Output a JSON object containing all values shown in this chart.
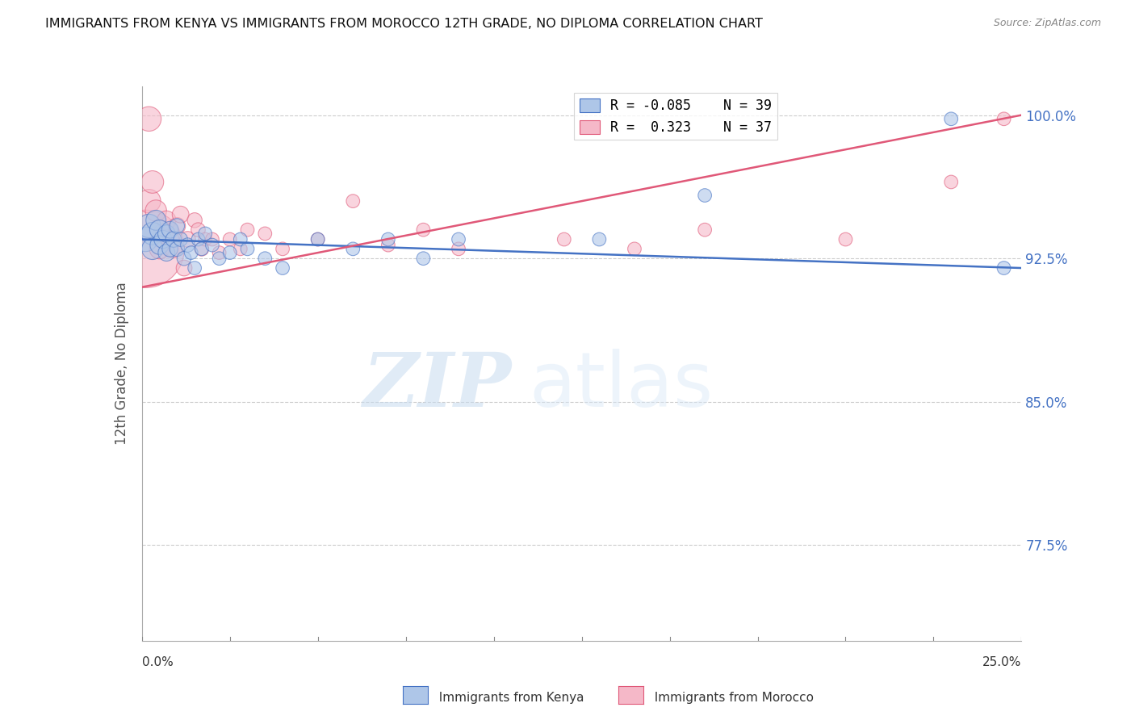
{
  "title": "IMMIGRANTS FROM KENYA VS IMMIGRANTS FROM MOROCCO 12TH GRADE, NO DIPLOMA CORRELATION CHART",
  "source": "Source: ZipAtlas.com",
  "ylabel": "12th Grade, No Diploma",
  "xlim": [
    0.0,
    0.25
  ],
  "ylim": [
    0.725,
    1.015
  ],
  "yticks": [
    0.775,
    0.85,
    0.925,
    1.0
  ],
  "ytick_labels": [
    "77.5%",
    "85.0%",
    "92.5%",
    "100.0%"
  ],
  "legend_r1": "R = -0.085",
  "legend_n1": "N = 39",
  "legend_r2": "R =  0.323",
  "legend_n2": "N = 37",
  "legend_label1": "Immigrants from Kenya",
  "legend_label2": "Immigrants from Morocco",
  "color_kenya": "#aec6e8",
  "color_morocco": "#f5b8c8",
  "color_line_kenya": "#4472c4",
  "color_line_morocco": "#e05878",
  "watermark_zip": "ZIP",
  "watermark_atlas": "atlas",
  "kenya_x": [
    0.001,
    0.002,
    0.003,
    0.003,
    0.004,
    0.005,
    0.005,
    0.006,
    0.007,
    0.007,
    0.008,
    0.008,
    0.009,
    0.01,
    0.01,
    0.011,
    0.012,
    0.013,
    0.014,
    0.015,
    0.016,
    0.017,
    0.018,
    0.02,
    0.022,
    0.025,
    0.028,
    0.03,
    0.035,
    0.04,
    0.05,
    0.06,
    0.07,
    0.08,
    0.09,
    0.13,
    0.16,
    0.23,
    0.245
  ],
  "kenya_y": [
    0.935,
    0.942,
    0.938,
    0.93,
    0.945,
    0.94,
    0.932,
    0.935,
    0.938,
    0.928,
    0.94,
    0.93,
    0.935,
    0.942,
    0.93,
    0.935,
    0.925,
    0.932,
    0.928,
    0.92,
    0.935,
    0.93,
    0.938,
    0.932,
    0.925,
    0.928,
    0.935,
    0.93,
    0.925,
    0.92,
    0.935,
    0.93,
    0.935,
    0.925,
    0.935,
    0.935,
    0.958,
    0.998,
    0.92
  ],
  "kenya_sizes": [
    60,
    55,
    50,
    45,
    40,
    38,
    35,
    32,
    30,
    28,
    28,
    25,
    25,
    22,
    22,
    20,
    20,
    20,
    18,
    18,
    18,
    18,
    18,
    18,
    18,
    18,
    18,
    18,
    18,
    18,
    18,
    18,
    18,
    18,
    18,
    18,
    18,
    18,
    18
  ],
  "morocco_x": [
    0.001,
    0.002,
    0.002,
    0.003,
    0.004,
    0.005,
    0.005,
    0.006,
    0.007,
    0.008,
    0.009,
    0.01,
    0.011,
    0.012,
    0.013,
    0.015,
    0.016,
    0.017,
    0.018,
    0.02,
    0.022,
    0.025,
    0.028,
    0.03,
    0.035,
    0.04,
    0.05,
    0.06,
    0.07,
    0.08,
    0.09,
    0.12,
    0.14,
    0.16,
    0.2,
    0.23,
    0.245
  ],
  "morocco_y": [
    0.93,
    0.998,
    0.955,
    0.965,
    0.95,
    0.94,
    0.93,
    0.938,
    0.945,
    0.935,
    0.93,
    0.942,
    0.948,
    0.92,
    0.935,
    0.945,
    0.94,
    0.93,
    0.935,
    0.935,
    0.928,
    0.935,
    0.93,
    0.94,
    0.938,
    0.93,
    0.935,
    0.955,
    0.932,
    0.94,
    0.93,
    0.935,
    0.93,
    0.94,
    0.935,
    0.965,
    0.998
  ],
  "morocco_sizes": [
    600,
    60,
    55,
    50,
    45,
    42,
    40,
    38,
    35,
    32,
    30,
    28,
    28,
    25,
    25,
    22,
    20,
    20,
    18,
    18,
    18,
    18,
    18,
    18,
    18,
    18,
    18,
    18,
    18,
    18,
    18,
    18,
    18,
    18,
    18,
    18,
    18
  ],
  "kenya_line_x0": 0.0,
  "kenya_line_x1": 0.25,
  "kenya_line_y0": 0.935,
  "kenya_line_y1": 0.92,
  "morocco_line_x0": 0.0,
  "morocco_line_x1": 0.25,
  "morocco_line_y0": 0.91,
  "morocco_line_y1": 1.0
}
